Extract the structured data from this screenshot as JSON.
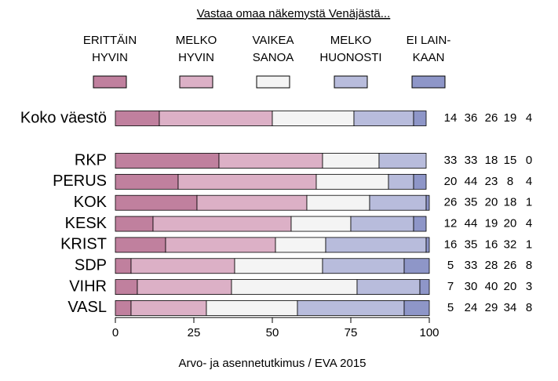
{
  "chart_data": {
    "type": "stacked-bar-horizontal",
    "title": "Vastaa omaa näkemystä Venäjästä...",
    "source": "Arvo- ja asennetutkimus / EVA 2015",
    "categories": [
      "Koko väestö",
      "RKP",
      "PERUS",
      "KOK",
      "KESK",
      "KRIST",
      "SDP",
      "VIHR",
      "VASL"
    ],
    "series": [
      {
        "name": "ERITTÄIN\nHYVIN",
        "color": "#c0809e",
        "values": [
          14,
          33,
          20,
          26,
          12,
          16,
          5,
          7,
          5
        ]
      },
      {
        "name": "MELKO\nHYVIN",
        "color": "#dcb0c6",
        "values": [
          36,
          33,
          44,
          35,
          44,
          35,
          33,
          30,
          24
        ]
      },
      {
        "name": "VAIKEA\nSANOA",
        "color": "#f4f4f4",
        "values": [
          26,
          18,
          23,
          20,
          19,
          16,
          28,
          40,
          29
        ]
      },
      {
        "name": "MELKO\nHUONOSTI",
        "color": "#b8bcdc",
        "values": [
          19,
          15,
          8,
          18,
          20,
          32,
          26,
          20,
          34
        ]
      },
      {
        "name": "EI LAIN-\nKAAN",
        "color": "#8e96c8",
        "values": [
          4,
          0,
          4,
          1,
          4,
          1,
          8,
          3,
          8
        ]
      }
    ],
    "xlim": [
      0,
      100
    ],
    "xticks": [
      0,
      25,
      50,
      75,
      100
    ]
  }
}
